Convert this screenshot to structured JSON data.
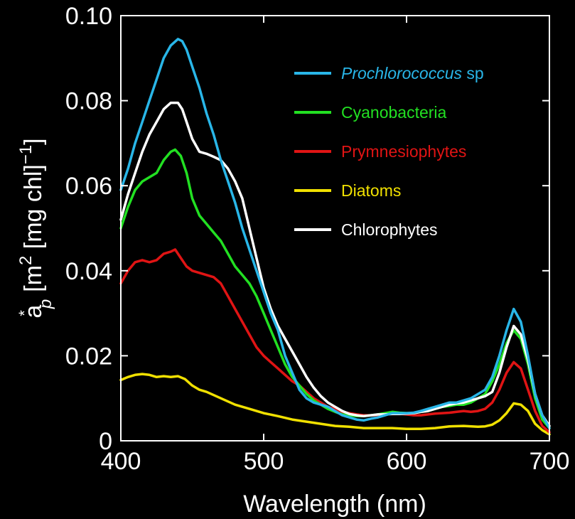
{
  "chart_data": {
    "type": "line",
    "xlabel": "Wavelength (nm)",
    "ylabel": {
      "base": "a",
      "superscript": "*",
      "subscript": "p",
      "units_open": "[m",
      "units_sup": "2",
      "units_mid": " [mg chl]",
      "units_sup2": "−1",
      "units_close": "]"
    },
    "xlim": [
      400,
      700
    ],
    "ylim": [
      0,
      0.1
    ],
    "xticks": [
      "400",
      "500",
      "600",
      "700"
    ],
    "yticks": [
      "0",
      "0.02",
      "0.04",
      "0.06",
      "0.08",
      "0.10"
    ],
    "grid": false,
    "legend_position": "top-right",
    "series": [
      {
        "name_italic": "Prochlorococcus",
        "name_suffix": " sp",
        "color": "#29b6e8",
        "x": [
          400,
          405,
          410,
          415,
          420,
          425,
          430,
          435,
          440,
          443,
          446,
          450,
          455,
          460,
          465,
          470,
          475,
          480,
          485,
          490,
          495,
          500,
          505,
          510,
          515,
          520,
          525,
          530,
          535,
          540,
          545,
          550,
          555,
          560,
          565,
          570,
          575,
          580,
          585,
          590,
          595,
          600,
          605,
          610,
          615,
          620,
          625,
          630,
          635,
          640,
          645,
          650,
          655,
          660,
          665,
          670,
          675,
          680,
          685,
          690,
          695,
          700
        ],
        "y": [
          0.059,
          0.064,
          0.07,
          0.075,
          0.08,
          0.085,
          0.09,
          0.093,
          0.0945,
          0.094,
          0.092,
          0.088,
          0.083,
          0.077,
          0.072,
          0.066,
          0.061,
          0.056,
          0.05,
          0.045,
          0.04,
          0.035,
          0.03,
          0.026,
          0.02,
          0.016,
          0.012,
          0.01,
          0.009,
          0.0085,
          0.008,
          0.007,
          0.006,
          0.0055,
          0.005,
          0.0048,
          0.0052,
          0.0055,
          0.006,
          0.0065,
          0.0065,
          0.0065,
          0.0066,
          0.007,
          0.0075,
          0.008,
          0.0085,
          0.009,
          0.009,
          0.0095,
          0.01,
          0.011,
          0.012,
          0.015,
          0.02,
          0.026,
          0.031,
          0.028,
          0.02,
          0.011,
          0.006,
          0.003
        ]
      },
      {
        "name": "Cyanobacteria",
        "color": "#22e022",
        "x": [
          400,
          405,
          410,
          415,
          420,
          425,
          430,
          435,
          438,
          442,
          446,
          450,
          455,
          460,
          465,
          470,
          475,
          480,
          485,
          490,
          495,
          500,
          505,
          510,
          515,
          520,
          525,
          530,
          535,
          540,
          545,
          550,
          555,
          560,
          565,
          570,
          575,
          580,
          585,
          590,
          595,
          600,
          605,
          610,
          615,
          620,
          625,
          630,
          635,
          640,
          645,
          650,
          655,
          660,
          665,
          670,
          675,
          680,
          685,
          690,
          695,
          700
        ],
        "y": [
          0.05,
          0.055,
          0.059,
          0.061,
          0.062,
          0.063,
          0.066,
          0.068,
          0.0685,
          0.067,
          0.063,
          0.057,
          0.053,
          0.051,
          0.049,
          0.047,
          0.044,
          0.041,
          0.039,
          0.037,
          0.034,
          0.03,
          0.026,
          0.022,
          0.018,
          0.015,
          0.013,
          0.011,
          0.0095,
          0.0085,
          0.0075,
          0.0068,
          0.0062,
          0.006,
          0.0058,
          0.0058,
          0.006,
          0.0062,
          0.0065,
          0.0068,
          0.0066,
          0.0065,
          0.0065,
          0.0068,
          0.007,
          0.0075,
          0.008,
          0.0082,
          0.0085,
          0.0085,
          0.009,
          0.01,
          0.011,
          0.014,
          0.018,
          0.023,
          0.026,
          0.024,
          0.018,
          0.01,
          0.005,
          0.003
        ]
      },
      {
        "name": "Prymnesiophytes",
        "color": "#e01414",
        "x": [
          400,
          405,
          410,
          415,
          420,
          425,
          430,
          435,
          438,
          442,
          446,
          450,
          455,
          460,
          465,
          470,
          475,
          480,
          485,
          490,
          495,
          500,
          505,
          510,
          515,
          520,
          525,
          530,
          535,
          540,
          545,
          550,
          555,
          560,
          565,
          570,
          575,
          580,
          585,
          590,
          595,
          600,
          605,
          610,
          615,
          620,
          625,
          630,
          635,
          640,
          645,
          650,
          655,
          660,
          665,
          670,
          675,
          680,
          685,
          690,
          695,
          700
        ],
        "y": [
          0.037,
          0.04,
          0.042,
          0.0425,
          0.042,
          0.0425,
          0.044,
          0.0445,
          0.045,
          0.043,
          0.041,
          0.04,
          0.0395,
          0.039,
          0.0385,
          0.037,
          0.034,
          0.031,
          0.028,
          0.025,
          0.022,
          0.02,
          0.0185,
          0.017,
          0.0155,
          0.014,
          0.013,
          0.0115,
          0.01,
          0.009,
          0.008,
          0.0075,
          0.0068,
          0.0065,
          0.0062,
          0.006,
          0.006,
          0.006,
          0.0062,
          0.0065,
          0.0064,
          0.0062,
          0.006,
          0.006,
          0.0062,
          0.0064,
          0.0065,
          0.0066,
          0.0068,
          0.007,
          0.0068,
          0.007,
          0.0075,
          0.009,
          0.012,
          0.016,
          0.0185,
          0.017,
          0.012,
          0.007,
          0.0035,
          0.002
        ]
      },
      {
        "name": "Diatoms",
        "color": "#f0e000",
        "x": [
          400,
          405,
          410,
          415,
          420,
          425,
          430,
          435,
          440,
          445,
          450,
          455,
          460,
          470,
          480,
          490,
          500,
          510,
          520,
          530,
          540,
          550,
          560,
          570,
          580,
          590,
          600,
          610,
          620,
          630,
          640,
          650,
          655,
          660,
          665,
          670,
          675,
          680,
          685,
          690,
          695,
          700
        ],
        "y": [
          0.0143,
          0.015,
          0.0155,
          0.0157,
          0.0155,
          0.015,
          0.0152,
          0.015,
          0.0152,
          0.0145,
          0.013,
          0.012,
          0.0115,
          0.01,
          0.0085,
          0.0075,
          0.0065,
          0.0058,
          0.005,
          0.0045,
          0.004,
          0.0035,
          0.0033,
          0.003,
          0.003,
          0.003,
          0.0028,
          0.0028,
          0.003,
          0.0034,
          0.0035,
          0.0033,
          0.0034,
          0.0038,
          0.0048,
          0.0065,
          0.0088,
          0.0085,
          0.007,
          0.004,
          0.0025,
          0.0015
        ]
      },
      {
        "name": "Chlorophytes",
        "color": "#ffffff",
        "x": [
          400,
          405,
          410,
          415,
          420,
          425,
          430,
          435,
          440,
          443,
          446,
          450,
          455,
          460,
          465,
          470,
          475,
          480,
          485,
          490,
          495,
          500,
          505,
          510,
          515,
          520,
          525,
          530,
          535,
          540,
          545,
          550,
          555,
          560,
          565,
          570,
          575,
          580,
          585,
          590,
          595,
          600,
          605,
          610,
          615,
          620,
          625,
          630,
          635,
          640,
          645,
          650,
          655,
          660,
          665,
          670,
          675,
          680,
          685,
          690,
          695,
          700
        ],
        "y": [
          0.052,
          0.058,
          0.063,
          0.068,
          0.072,
          0.075,
          0.078,
          0.0795,
          0.0795,
          0.078,
          0.075,
          0.071,
          0.068,
          0.0675,
          0.0668,
          0.066,
          0.064,
          0.061,
          0.057,
          0.05,
          0.043,
          0.036,
          0.031,
          0.027,
          0.024,
          0.021,
          0.018,
          0.015,
          0.0125,
          0.0105,
          0.009,
          0.008,
          0.007,
          0.0063,
          0.006,
          0.0058,
          0.006,
          0.0062,
          0.0062,
          0.0063,
          0.0063,
          0.0064,
          0.0065,
          0.0068,
          0.007,
          0.0075,
          0.008,
          0.0085,
          0.0088,
          0.009,
          0.0095,
          0.01,
          0.0105,
          0.0115,
          0.016,
          0.022,
          0.027,
          0.025,
          0.019,
          0.011,
          0.006,
          0.0035
        ]
      }
    ]
  }
}
